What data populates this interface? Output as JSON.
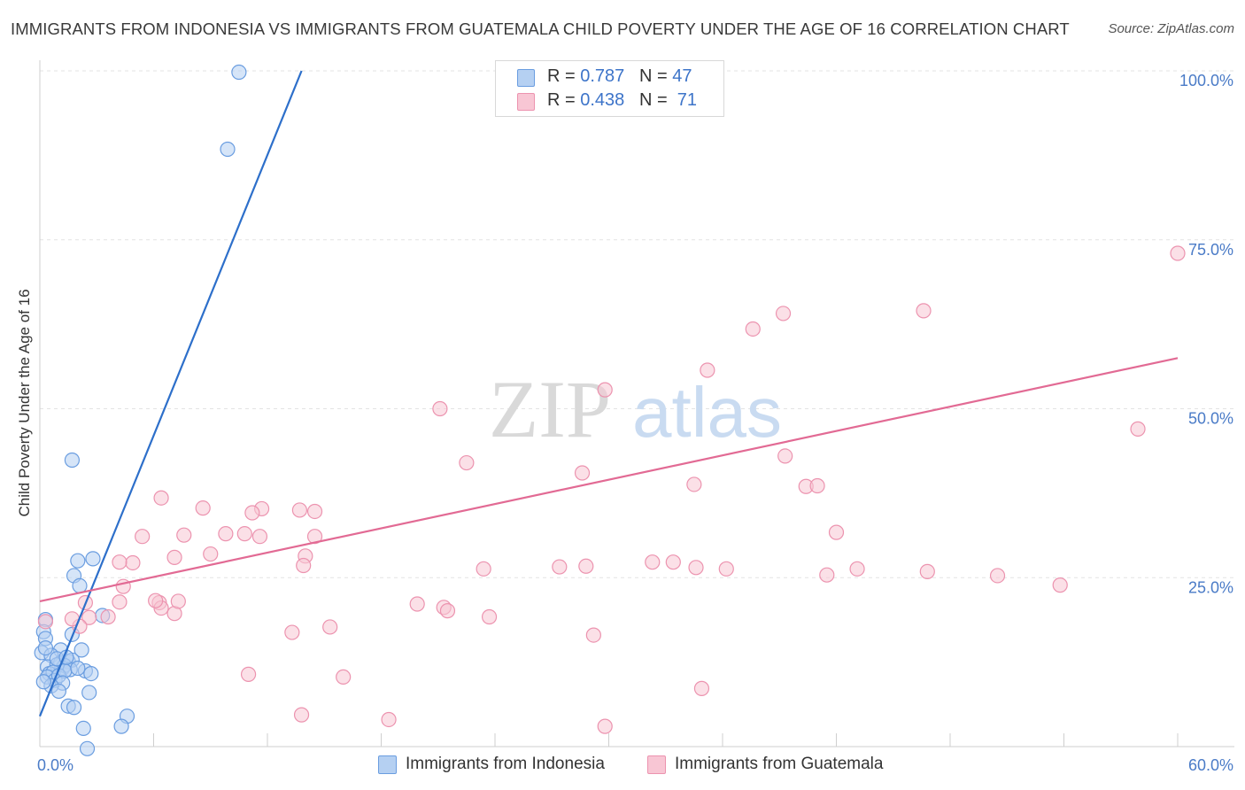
{
  "title": "IMMIGRANTS FROM INDONESIA VS IMMIGRANTS FROM GUATEMALA CHILD POVERTY UNDER THE AGE OF 16 CORRELATION CHART",
  "source": "Source: ZipAtlas.com",
  "watermark": {
    "zip": "ZIP",
    "atlas": "atlas"
  },
  "legend": {
    "r_label": "R =",
    "n_label": "N =",
    "entries": [
      {
        "r": "0.787",
        "n": "47",
        "color": "#a9c8f0"
      },
      {
        "r": "0.438",
        "n": "71",
        "color": "#f6b9cb"
      }
    ]
  },
  "colors": {
    "indonesia_fill": "#b5d0f2",
    "indonesia_stroke": "#6a9de0",
    "indonesia_line": "#2d6fca",
    "guatemala_fill": "#f8c6d4",
    "guatemala_stroke": "#ec93af",
    "guatemala_line": "#e26a94",
    "grid": "#e3e3e3"
  },
  "chart_data": {
    "type": "scatter",
    "title": "IMMIGRANTS FROM INDONESIA VS IMMIGRANTS FROM GUATEMALA CHILD POVERTY UNDER THE AGE OF 16 CORRELATION CHART",
    "xlabel": "",
    "ylabel": "Child Poverty Under the Age of 16",
    "xlim": [
      0,
      60
    ],
    "ylim": [
      0,
      100
    ],
    "x_ticks": [
      "0.0%",
      "60.0%"
    ],
    "y_ticks": [
      {
        "value": 25,
        "label": "25.0%"
      },
      {
        "value": 50,
        "label": "50.0%"
      },
      {
        "value": 75,
        "label": "75.0%"
      },
      {
        "value": 100,
        "label": "100.0%"
      }
    ],
    "grid": true,
    "legend_position": "top-center",
    "series": [
      {
        "name": "Immigrants from Indonesia",
        "r": 0.787,
        "n": 47,
        "trend": {
          "x0": 0,
          "y0": 4.5,
          "x1": 13.8,
          "y1": 100
        },
        "points": [
          [
            10.5,
            99.8
          ],
          [
            9.9,
            88.4
          ],
          [
            1.7,
            42.4
          ],
          [
            2.0,
            27.5
          ],
          [
            2.8,
            27.8
          ],
          [
            1.8,
            25.3
          ],
          [
            2.1,
            23.8
          ],
          [
            3.3,
            19.4
          ],
          [
            0.3,
            18.8
          ],
          [
            0.2,
            17.0
          ],
          [
            1.7,
            16.6
          ],
          [
            0.3,
            16.0
          ],
          [
            1.1,
            14.3
          ],
          [
            2.2,
            14.3
          ],
          [
            0.1,
            13.9
          ],
          [
            0.6,
            13.5
          ],
          [
            1.1,
            12.4
          ],
          [
            1.5,
            12.6
          ],
          [
            1.7,
            12.8
          ],
          [
            1.2,
            11.6
          ],
          [
            1.3,
            12.0
          ],
          [
            1.6,
            11.4
          ],
          [
            2.4,
            11.2
          ],
          [
            0.4,
            11.8
          ],
          [
            0.9,
            12.1
          ],
          [
            0.5,
            10.8
          ],
          [
            0.7,
            11.0
          ],
          [
            0.4,
            10.3
          ],
          [
            0.8,
            9.8
          ],
          [
            1.0,
            10.5
          ],
          [
            1.3,
            11.2
          ],
          [
            2.7,
            10.8
          ],
          [
            1.2,
            9.4
          ],
          [
            0.6,
            9.0
          ],
          [
            1.0,
            8.2
          ],
          [
            0.2,
            9.6
          ],
          [
            2.6,
            8.0
          ],
          [
            1.5,
            6.0
          ],
          [
            1.8,
            5.8
          ],
          [
            4.6,
            4.5
          ],
          [
            4.3,
            3.0
          ],
          [
            2.3,
            2.7
          ],
          [
            2.5,
            -0.3
          ],
          [
            0.9,
            13.0
          ],
          [
            1.4,
            13.2
          ],
          [
            0.3,
            14.6
          ],
          [
            2.0,
            11.6
          ]
        ]
      },
      {
        "name": "Immigrants from Guatemala",
        "r": 0.438,
        "n": 71,
        "trend": {
          "x0": 0,
          "y0": 21.5,
          "x1": 60,
          "y1": 57.5
        },
        "points": [
          [
            60.0,
            73.0
          ],
          [
            46.6,
            64.5
          ],
          [
            39.2,
            64.1
          ],
          [
            37.6,
            61.8
          ],
          [
            35.2,
            55.7
          ],
          [
            29.8,
            52.8
          ],
          [
            21.1,
            50.0
          ],
          [
            57.9,
            47.0
          ],
          [
            39.3,
            43.0
          ],
          [
            22.5,
            42.0
          ],
          [
            28.6,
            40.5
          ],
          [
            34.5,
            38.8
          ],
          [
            40.4,
            38.5
          ],
          [
            41.0,
            38.6
          ],
          [
            6.4,
            36.8
          ],
          [
            8.6,
            35.3
          ],
          [
            11.7,
            35.2
          ],
          [
            11.2,
            34.6
          ],
          [
            13.7,
            35.0
          ],
          [
            14.5,
            34.8
          ],
          [
            42.0,
            31.7
          ],
          [
            7.6,
            31.3
          ],
          [
            10.8,
            31.5
          ],
          [
            11.6,
            31.1
          ],
          [
            14.5,
            31.1
          ],
          [
            5.4,
            31.1
          ],
          [
            9.8,
            31.5
          ],
          [
            14.0,
            28.2
          ],
          [
            7.1,
            28.0
          ],
          [
            9.0,
            28.5
          ],
          [
            4.9,
            27.2
          ],
          [
            4.2,
            27.3
          ],
          [
            13.9,
            26.8
          ],
          [
            23.4,
            26.3
          ],
          [
            27.4,
            26.6
          ],
          [
            28.8,
            26.7
          ],
          [
            32.3,
            27.3
          ],
          [
            33.4,
            27.3
          ],
          [
            34.6,
            26.5
          ],
          [
            36.2,
            26.3
          ],
          [
            41.5,
            25.4
          ],
          [
            43.1,
            26.3
          ],
          [
            46.8,
            25.9
          ],
          [
            53.8,
            23.9
          ],
          [
            50.5,
            25.3
          ],
          [
            4.4,
            23.7
          ],
          [
            6.3,
            21.3
          ],
          [
            6.4,
            20.5
          ],
          [
            4.2,
            21.4
          ],
          [
            7.1,
            19.7
          ],
          [
            2.4,
            21.3
          ],
          [
            2.6,
            19.1
          ],
          [
            3.6,
            19.2
          ],
          [
            7.3,
            21.5
          ],
          [
            19.9,
            21.1
          ],
          [
            21.3,
            20.6
          ],
          [
            21.5,
            20.1
          ],
          [
            23.7,
            19.2
          ],
          [
            15.3,
            17.7
          ],
          [
            2.1,
            17.8
          ],
          [
            0.3,
            18.5
          ],
          [
            6.1,
            21.6
          ],
          [
            13.3,
            16.9
          ],
          [
            1.7,
            18.9
          ],
          [
            29.2,
            16.5
          ],
          [
            11.0,
            10.7
          ],
          [
            16.0,
            10.3
          ],
          [
            13.8,
            4.7
          ],
          [
            18.4,
            4.0
          ],
          [
            29.8,
            3.0
          ],
          [
            34.9,
            8.6
          ]
        ]
      }
    ]
  }
}
